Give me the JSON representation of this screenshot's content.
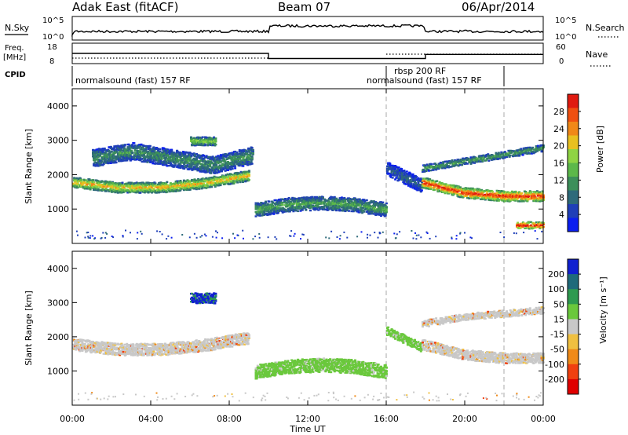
{
  "header": {
    "station": "Adak East (fitACF)",
    "beam": "Beam 07",
    "date": "06/Apr/2014"
  },
  "status_panels": {
    "noise": {
      "left_label": "N.Sky",
      "right_label": "N.Search",
      "left_ticks": [
        "10^5",
        "10^0"
      ],
      "right_ticks": [
        "10^5",
        "10^0"
      ]
    },
    "frequency": {
      "left_label_top": "Freq.",
      "left_label_bottom": "[MHz]",
      "right_label": "Nave",
      "left_ticks": [
        "18",
        "8"
      ],
      "right_ticks": [
        "60",
        "0"
      ],
      "freq_segments": [
        {
          "from": "00:00",
          "to": "10:00",
          "mhz": 13
        },
        {
          "from": "10:00",
          "to": "18:00",
          "mhz": 10.5
        },
        {
          "from": "18:00",
          "to": "24:00",
          "mhz": 12.5
        }
      ]
    },
    "cpid": {
      "label": "CPID",
      "programs": [
        {
          "name": "normalsound (fast) 157 RF",
          "start": "00:00"
        },
        {
          "name": "rbsp 200 RF",
          "start": "16:00"
        },
        {
          "name": "normalsound (fast) 157 RF",
          "start": "16:00"
        }
      ]
    }
  },
  "chart_data": [
    {
      "type": "heatmap",
      "name": "power",
      "xlabel": "",
      "ylabel": "Slant Range [km]",
      "xlim": [
        "00:00",
        "24:00"
      ],
      "ylim": [
        0,
        4500
      ],
      "yticks": [
        "1000",
        "2000",
        "3000",
        "4000"
      ],
      "colorbar": {
        "label": "Power [dB]",
        "ticks": [
          "4",
          "8",
          "12",
          "16",
          "20",
          "24",
          "28"
        ],
        "colors": [
          "#0a1ef0",
          "#1f3fb8",
          "#2e6a7a",
          "#3c8f5a",
          "#5cb84a",
          "#8fd444",
          "#e8c020",
          "#f08818",
          "#f05010",
          "#e01a10"
        ]
      },
      "regions": [
        {
          "t0": 0.0,
          "t1": 9.0,
          "r_center": [
            1800,
            1650,
            1650,
            1780,
            2000
          ],
          "thickness": 300,
          "level": 0.6
        },
        {
          "t0": 1.0,
          "t1": 9.2,
          "r_center": [
            2500,
            2700,
            2500,
            2300,
            2600
          ],
          "thickness": 500,
          "level": 0.3
        },
        {
          "t0": 6.0,
          "t1": 7.3,
          "r_center": [
            3000,
            3000
          ],
          "thickness": 250,
          "level": 0.45
        },
        {
          "t0": 9.3,
          "t1": 16.0,
          "r_center": [
            1000,
            1150,
            1200,
            1150,
            1000
          ],
          "thickness": 400,
          "level": 0.35
        },
        {
          "t0": 16.0,
          "t1": 17.8,
          "r_center": [
            2200,
            1700
          ],
          "thickness": 400,
          "level": 0.2
        },
        {
          "t0": 17.8,
          "t1": 24.0,
          "r_center": [
            1800,
            1500,
            1400,
            1400
          ],
          "thickness": 300,
          "level": 0.8
        },
        {
          "t0": 17.8,
          "t1": 24.0,
          "r_center": [
            2200,
            2400,
            2600,
            2800
          ],
          "thickness": 200,
          "level": 0.35
        },
        {
          "t0": 22.6,
          "t1": 24.0,
          "r_center": [
            550,
            550
          ],
          "thickness": 200,
          "level": 0.85
        }
      ]
    },
    {
      "type": "heatmap",
      "name": "velocity",
      "xlabel": "Time UT",
      "ylabel": "Slant Range [km]",
      "xlim": [
        "00:00",
        "24:00"
      ],
      "ylim": [
        0,
        4500
      ],
      "xticks": [
        "00:00",
        "04:00",
        "08:00",
        "12:00",
        "16:00",
        "20:00",
        "00:00"
      ],
      "yticks": [
        "1000",
        "2000",
        "3000",
        "4000"
      ],
      "colorbar": {
        "label": "Velocity [m s⁻¹]",
        "ticks": [
          "200",
          "100",
          "50",
          "15",
          "-15",
          "-50",
          "-100",
          "-200"
        ],
        "colors": [
          "#1020d0",
          "#1f6a7a",
          "#2e9a50",
          "#6ac83c",
          "#c8c8c8",
          "#f0c040",
          "#f08a18",
          "#f04010",
          "#e00000"
        ]
      },
      "regions": [
        {
          "t0": 0.0,
          "t1": 9.0,
          "r_center": [
            1800,
            1650,
            1650,
            1780,
            2000
          ],
          "thickness": 350,
          "class": "grey"
        },
        {
          "t0": 6.0,
          "t1": 7.3,
          "r_center": [
            3150,
            3150
          ],
          "thickness": 300,
          "class": "blue"
        },
        {
          "t0": 9.3,
          "t1": 16.0,
          "r_center": [
            1000,
            1150,
            1200,
            1150,
            1000
          ],
          "thickness": 400,
          "class": "green"
        },
        {
          "t0": 16.0,
          "t1": 17.8,
          "r_center": [
            2200,
            1700
          ],
          "thickness": 250,
          "class": "green"
        },
        {
          "t0": 17.8,
          "t1": 24.0,
          "r_center": [
            1800,
            1500,
            1400,
            1400
          ],
          "thickness": 300,
          "class": "grey"
        },
        {
          "t0": 17.8,
          "t1": 24.0,
          "r_center": [
            2400,
            2600,
            2700,
            2800
          ],
          "thickness": 200,
          "class": "grey"
        }
      ]
    }
  ],
  "colors": {
    "dashed_marker": "#aaaaaa",
    "grey_scatter": "#c8c8c8",
    "green_scatter": "#66cc33"
  }
}
